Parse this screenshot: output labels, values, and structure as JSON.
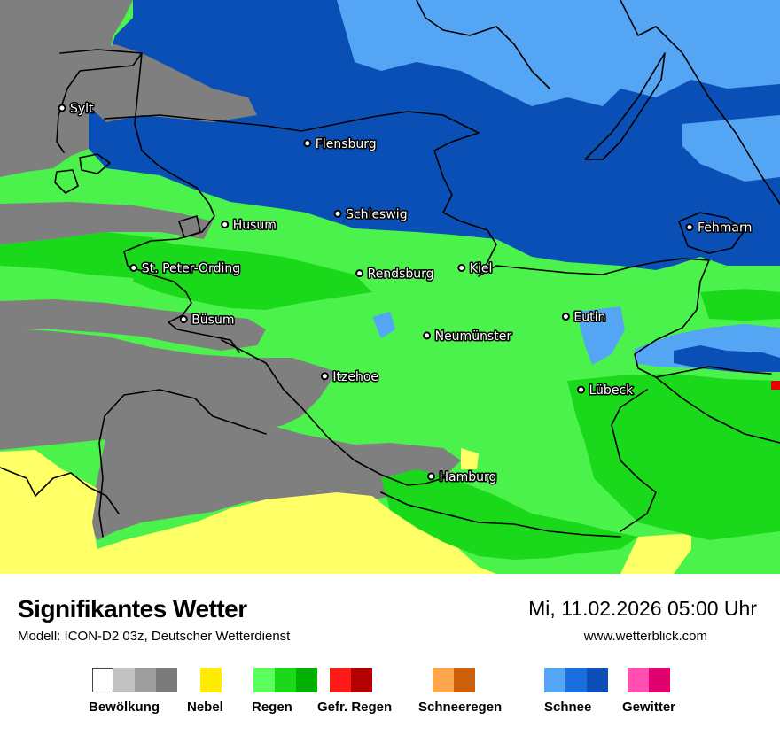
{
  "map": {
    "cities": [
      {
        "name": "Sylt",
        "lon": 8.3,
        "lat": 54.91
      },
      {
        "name": "Flensburg",
        "lon": 9.43,
        "lat": 54.78
      },
      {
        "name": "Schleswig",
        "lon": 9.57,
        "lat": 54.52
      },
      {
        "name": "Husum",
        "lon": 9.05,
        "lat": 54.48
      },
      {
        "name": "Fehmarn",
        "lon": 11.19,
        "lat": 54.47
      },
      {
        "name": "St. Peter-Ording",
        "lon": 8.63,
        "lat": 54.32
      },
      {
        "name": "Rendsburg",
        "lon": 9.67,
        "lat": 54.3
      },
      {
        "name": "Kiel",
        "lon": 10.14,
        "lat": 54.32
      },
      {
        "name": "Büsum",
        "lon": 8.86,
        "lat": 54.13
      },
      {
        "name": "Eutin",
        "lon": 10.62,
        "lat": 54.14
      },
      {
        "name": "Neumünster",
        "lon": 9.98,
        "lat": 54.07
      },
      {
        "name": "Itzehoe",
        "lon": 9.51,
        "lat": 53.92
      },
      {
        "name": "Lübeck",
        "lon": 10.69,
        "lat": 53.87
      },
      {
        "name": "Hamburg",
        "lon": 10.0,
        "lat": 53.55
      }
    ],
    "colors": {
      "cloud_dark": "#7f7f7f",
      "fog": "#ffff66",
      "rain_light": "#4cf24c",
      "rain_mid": "#1ad81a",
      "snow_dark": "#0a4fb5",
      "snow_light": "#55a5f5",
      "freezing": "#e60000",
      "coast": "#000000",
      "city_dot": "#ffffff"
    }
  },
  "footer": {
    "title": "Signifikantes Wetter",
    "model": "Modell: ICON-D2 03z, Deutscher Wetterdienst",
    "datetime": "Mi, 11.02.2026 05:00 Uhr",
    "website": "www.wetterblick.com"
  },
  "legend": [
    {
      "label": "Bewölkung",
      "colors": [
        "#ffffff",
        "#c2c2c2",
        "#9e9e9e",
        "#7a7a7a"
      ]
    },
    {
      "label": "Nebel",
      "colors": [
        "#ffec00"
      ]
    },
    {
      "label": "Regen",
      "colors": [
        "#5cff5c",
        "#19d919",
        "#00b000"
      ]
    },
    {
      "label": "Gefr. Regen",
      "colors": [
        "#ff1a1a",
        "#b30000"
      ]
    },
    {
      "label": "Schneeregen",
      "colors": [
        "#ffa64d",
        "#cc5f0a"
      ]
    },
    {
      "label": "Schnee",
      "colors": [
        "#55a5f5",
        "#1a6fe0",
        "#0a4fb5"
      ]
    },
    {
      "label": "Gewitter",
      "colors": [
        "#ff4fb0",
        "#e0006f"
      ]
    }
  ]
}
